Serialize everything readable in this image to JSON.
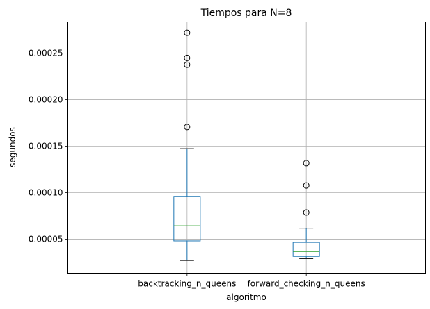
{
  "chart_data": {
    "type": "box",
    "title": "Tiempos para N=8",
    "xlabel": "algoritmo",
    "ylabel": "segundos",
    "categories": [
      "backtracking_n_queens",
      "forward_checking_n_queens"
    ],
    "ylim": [
      1.35e-05,
      0.0002835
    ],
    "yticks": [
      5e-05,
      0.0001,
      0.00015,
      0.0002,
      0.00025
    ],
    "ytick_labels": [
      "0.00005",
      "0.00010",
      "0.00015",
      "0.00020",
      "0.00025"
    ],
    "grid": true,
    "boxes": [
      {
        "name": "backtracking_n_queens",
        "whisker_low": 2.72e-05,
        "q1": 4.82e-05,
        "median": 6.45e-05,
        "q3": 9.61e-05,
        "whisker_high": 0.0001473,
        "outliers": [
          0.0001706,
          0.0002375,
          0.0002448,
          0.0002718
        ]
      },
      {
        "name": "forward_checking_n_queens",
        "whisker_low": 2.93e-05,
        "q1": 3.16e-05,
        "median": 3.68e-05,
        "q3": 4.66e-05,
        "whisker_high": 6.19e-05,
        "outliers": [
          7.88e-05,
          0.0001078,
          0.0001318
        ]
      }
    ],
    "colors": {
      "box": "#1f77b4",
      "median": "#2ca02c",
      "whisker": "#1f77b4",
      "cap": "#000000",
      "outlier_edge": "#000000",
      "grid": "#b0b0b0",
      "axes": "#000000"
    }
  }
}
